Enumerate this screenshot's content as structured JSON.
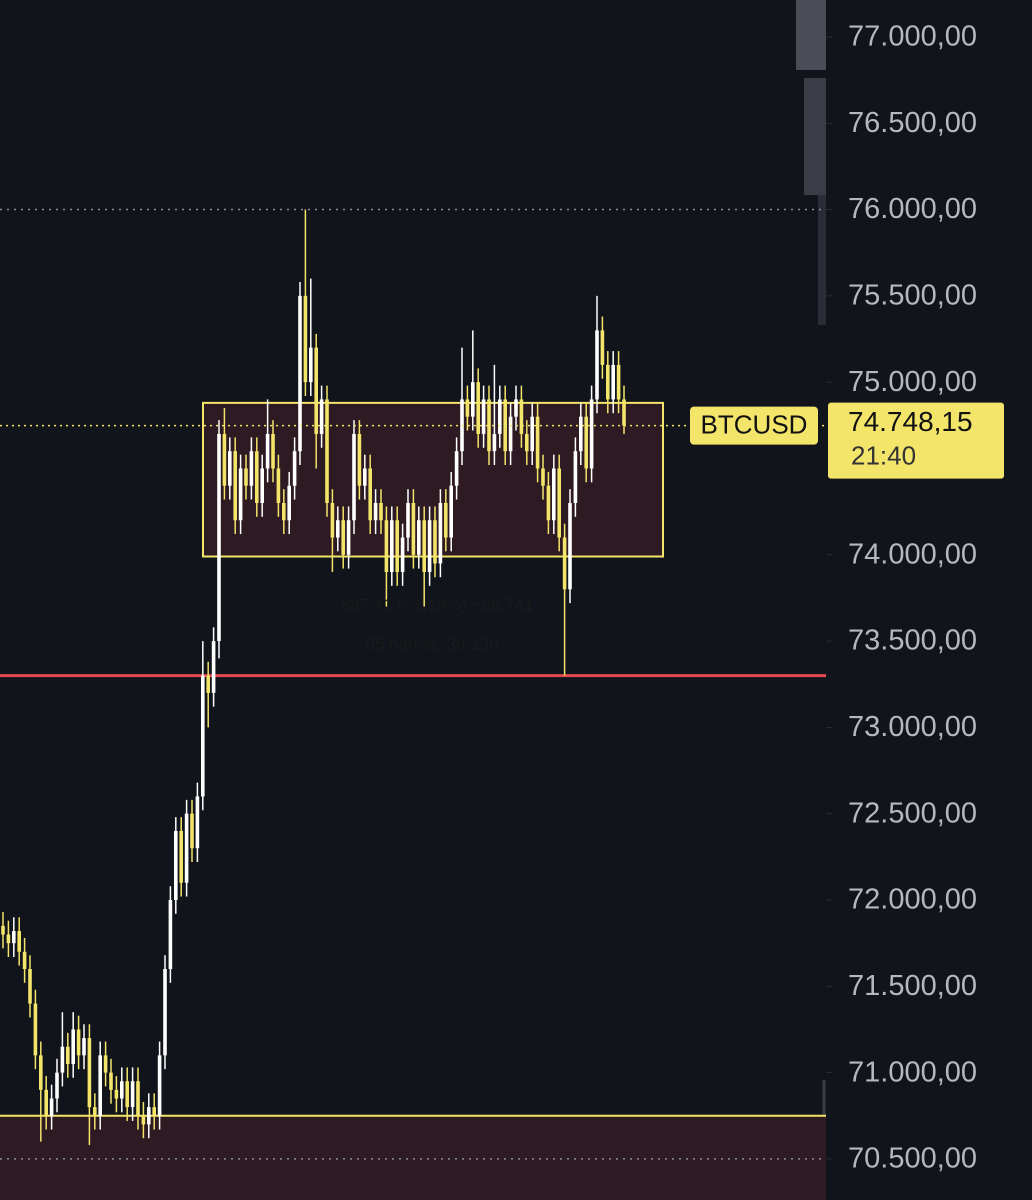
{
  "chart_data": {
    "type": "candlestick",
    "symbol": "BTCUSD",
    "last_price_label": "74.748,15",
    "countdown": "21:40",
    "up_color": "#ffffff",
    "down_color": "#f3e46a",
    "ylim": [
      70262,
      77214
    ],
    "yticks": [
      {
        "value": 77000,
        "label": "77.000,00"
      },
      {
        "value": 76500,
        "label": "76.500,00"
      },
      {
        "value": 76000,
        "label": "76.000,00"
      },
      {
        "value": 75500,
        "label": "75.500,00"
      },
      {
        "value": 75000,
        "label": "75.000,00"
      },
      {
        "value": 74000,
        "label": "74.000,00"
      },
      {
        "value": 73500,
        "label": "73.500,00"
      },
      {
        "value": 73000,
        "label": "73.000,00"
      },
      {
        "value": 72500,
        "label": "72.500,00"
      },
      {
        "value": 72000,
        "label": "72.000,00"
      },
      {
        "value": 71500,
        "label": "71.500,00"
      },
      {
        "value": 71000,
        "label": "71.000,00"
      },
      {
        "value": 70500,
        "label": "70.500,00"
      }
    ],
    "dotted_levels": [
      76000,
      70500
    ],
    "resistance_level": {
      "value": 73300,
      "color": "#e5484d"
    },
    "support_zone": {
      "value": 70750,
      "color": "#f3e46a"
    },
    "range_box": {
      "top": 74880,
      "bottom": 73990,
      "color": "#f3e46a"
    },
    "annotations": {
      "measure_text": "−887,41 (−1,19%) −88.741",
      "bars_text": "85 barras, 3d 13h"
    },
    "open": [
      71850,
      71800,
      71750,
      71820,
      71700,
      71600,
      71400,
      71100,
      70900,
      70750,
      70850,
      71000,
      71150,
      71050,
      71250,
      71100,
      71200,
      70800,
      70750,
      71100,
      71000,
      70900,
      70850,
      70950,
      70800,
      70950,
      70750,
      70700,
      70800,
      70750,
      71100,
      71600,
      72000,
      72400,
      72100,
      72500,
      72300,
      72600,
      73300,
      73200,
      73500,
      74700,
      74400,
      74600,
      74200,
      74500,
      74400,
      74600,
      74300,
      74500,
      74700,
      74500,
      74300,
      74200,
      74400,
      74600,
      75500,
      75000,
      75200,
      74700,
      74900,
      74300,
      74100,
      74200,
      74000,
      74200,
      74700,
      74400,
      74500,
      74200,
      74300,
      74200,
      73900,
      74200,
      73900,
      74100,
      74300,
      74000,
      74200,
      73900,
      74200,
      73950,
      74300,
      74100,
      74400,
      74600,
      74900,
      74800,
      75000,
      74700,
      74900,
      74600,
      74700,
      74900,
      74600,
      74800,
      74900,
      74700,
      74600,
      74800,
      74500,
      74400,
      74200,
      74500,
      74100,
      73800,
      74300,
      74600,
      74800,
      74500,
      74900,
      75300,
      75100,
      74900,
      75100,
      74900
    ],
    "high": [
      71930,
      71880,
      71900,
      71900,
      71780,
      71680,
      71480,
      71180,
      70980,
      70930,
      71080,
      71350,
      71230,
      71350,
      71330,
      71280,
      71280,
      70880,
      71180,
      71180,
      71080,
      70980,
      71030,
      71030,
      71030,
      71030,
      70830,
      70880,
      70880,
      71180,
      71680,
      72080,
      72480,
      72480,
      72580,
      72580,
      72680,
      73500,
      73380,
      73580,
      74780,
      74850,
      74680,
      74680,
      74580,
      74580,
      74680,
      74680,
      74580,
      74900,
      74780,
      74580,
      74380,
      74480,
      74680,
      75580,
      76000,
      75600,
      75280,
      74980,
      74980,
      74380,
      74280,
      74280,
      74280,
      74780,
      74780,
      74580,
      74580,
      74380,
      74380,
      74280,
      74280,
      74280,
      74180,
      74380,
      74380,
      74280,
      74280,
      74280,
      74280,
      74380,
      74380,
      74480,
      74680,
      75200,
      74980,
      75300,
      75080,
      74980,
      74980,
      75100,
      74980,
      74980,
      74880,
      74980,
      74980,
      74780,
      74880,
      74880,
      74580,
      74480,
      74580,
      74580,
      74180,
      74380,
      74680,
      74880,
      74880,
      74980,
      75500,
      75380,
      75180,
      75180,
      75180,
      74980
    ],
    "low": [
      71720,
      71670,
      71670,
      71620,
      71520,
      71320,
      71020,
      70600,
      70670,
      70670,
      70770,
      70920,
      70970,
      70970,
      71020,
      71020,
      70580,
      70670,
      70670,
      70920,
      70820,
      70770,
      70770,
      70720,
      70720,
      70670,
      70620,
      70620,
      70670,
      70670,
      71020,
      71520,
      71920,
      72020,
      72020,
      72220,
      72220,
      72520,
      73000,
      73120,
      73400,
      74320,
      74320,
      74120,
      74120,
      74320,
      74320,
      74220,
      74220,
      74420,
      74420,
      74220,
      74120,
      74120,
      74320,
      74520,
      74920,
      74920,
      74500,
      74620,
      74220,
      73900,
      74020,
      73920,
      73920,
      74120,
      74320,
      74320,
      74120,
      74120,
      74120,
      73700,
      73820,
      73820,
      73820,
      74020,
      73920,
      73920,
      73700,
      73820,
      73870,
      73870,
      74020,
      74020,
      74320,
      74520,
      74720,
      74720,
      74620,
      74620,
      74520,
      74520,
      74620,
      74520,
      74520,
      74720,
      74620,
      74520,
      74520,
      74420,
      74320,
      74120,
      74120,
      74020,
      73300,
      73720,
      74220,
      74520,
      74420,
      74420,
      74820,
      75020,
      74820,
      74820,
      74820,
      74700
    ],
    "close": [
      71800,
      71750,
      71820,
      71700,
      71600,
      71400,
      71100,
      70900,
      70750,
      70850,
      71000,
      71150,
      71050,
      71250,
      71100,
      71200,
      70800,
      70750,
      71100,
      71000,
      70900,
      70850,
      70950,
      70800,
      70950,
      70750,
      70700,
      70800,
      70750,
      71100,
      71600,
      72000,
      72400,
      72100,
      72500,
      72300,
      72600,
      73300,
      73200,
      73500,
      74700,
      74400,
      74600,
      74200,
      74500,
      74400,
      74600,
      74300,
      74500,
      74700,
      74500,
      74300,
      74200,
      74400,
      74600,
      75500,
      75000,
      75200,
      74700,
      74900,
      74300,
      74100,
      74200,
      74000,
      74200,
      74700,
      74400,
      74500,
      74200,
      74300,
      74200,
      73900,
      74200,
      73900,
      74100,
      74300,
      74000,
      74200,
      73900,
      74200,
      73950,
      74300,
      74100,
      74400,
      74600,
      74900,
      74800,
      75000,
      74700,
      74900,
      74600,
      74700,
      74900,
      74600,
      74800,
      74900,
      74700,
      74600,
      74800,
      74500,
      74400,
      74200,
      74500,
      74100,
      73800,
      74300,
      74600,
      74800,
      74500,
      74900,
      75300,
      75100,
      74900,
      75100,
      74900,
      74748.15
    ]
  }
}
